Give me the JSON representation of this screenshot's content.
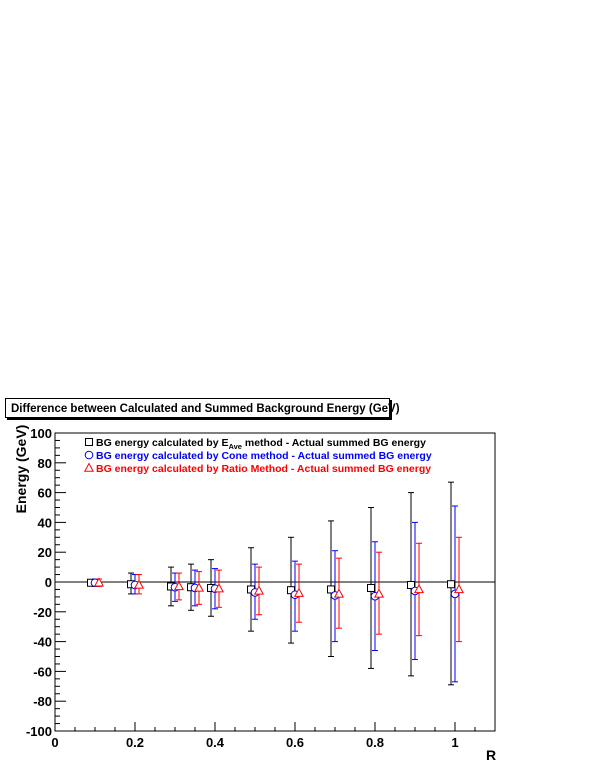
{
  "chart_data": {
    "type": "scatter",
    "title": "Difference between Calculated and Summed Background Energy (GeV)",
    "xlabel": "R",
    "ylabel": "Energy (GeV)",
    "xlim": [
      0,
      1.1
    ],
    "ylim": [
      -100,
      100
    ],
    "x_ticks": [
      "0",
      "0.2",
      "0.4",
      "0.6",
      "0.8",
      "1"
    ],
    "y_ticks": [
      "-100",
      "-80",
      "-60",
      "-40",
      "-20",
      "0",
      "20",
      "40",
      "60",
      "80",
      "100"
    ],
    "grid": false,
    "legend_position": "top-left",
    "legend": [
      {
        "marker": "square",
        "color": "#000000",
        "text_pre": "BG energy calculated by E",
        "text_sub": "Ave",
        "text_post": " method - Actual summed BG energy"
      },
      {
        "marker": "circle",
        "color": "#0000ff",
        "text_pre": "BG energy calculated by Cone method - Actual summed BG energy",
        "text_sub": "",
        "text_post": ""
      },
      {
        "marker": "triangle",
        "color": "#ff0000",
        "text_pre": "BG energy calculated by Ratio Method - Actual summed BG energy",
        "text_sub": "",
        "text_post": ""
      }
    ],
    "series": [
      {
        "marker": "square",
        "color": "#000000",
        "points": [
          {
            "x": 0.09,
            "y": -0.5,
            "lo": -2,
            "hi": 1.5
          },
          {
            "x": 0.19,
            "y": -1.5,
            "lo": -8,
            "hi": 6
          },
          {
            "x": 0.29,
            "y": -3,
            "lo": -16,
            "hi": 10
          },
          {
            "x": 0.34,
            "y": -3.5,
            "lo": -19,
            "hi": 12
          },
          {
            "x": 0.39,
            "y": -4,
            "lo": -23,
            "hi": 15
          },
          {
            "x": 0.49,
            "y": -5,
            "lo": -33,
            "hi": 23
          },
          {
            "x": 0.59,
            "y": -5.5,
            "lo": -41,
            "hi": 30
          },
          {
            "x": 0.69,
            "y": -5,
            "lo": -50,
            "hi": 41
          },
          {
            "x": 0.79,
            "y": -4,
            "lo": -58,
            "hi": 50
          },
          {
            "x": 0.89,
            "y": -2,
            "lo": -63,
            "hi": 60
          },
          {
            "x": 0.99,
            "y": -1.5,
            "lo": -69,
            "hi": 67
          }
        ]
      },
      {
        "marker": "circle",
        "color": "#0000ff",
        "points": [
          {
            "x": 0.1,
            "y": -0.5,
            "lo": -3,
            "hi": 2
          },
          {
            "x": 0.2,
            "y": -2,
            "lo": -8,
            "hi": 5
          },
          {
            "x": 0.3,
            "y": -3.5,
            "lo": -13,
            "hi": 6
          },
          {
            "x": 0.35,
            "y": -4,
            "lo": -16,
            "hi": 8
          },
          {
            "x": 0.4,
            "y": -4.5,
            "lo": -18,
            "hi": 9
          },
          {
            "x": 0.5,
            "y": -7,
            "lo": -25,
            "hi": 12
          },
          {
            "x": 0.6,
            "y": -8.5,
            "lo": -33,
            "hi": 14
          },
          {
            "x": 0.7,
            "y": -9,
            "lo": -40,
            "hi": 21
          },
          {
            "x": 0.8,
            "y": -9.5,
            "lo": -46,
            "hi": 27
          },
          {
            "x": 0.9,
            "y": -6,
            "lo": -52,
            "hi": 40
          },
          {
            "x": 1.0,
            "y": -8,
            "lo": -67,
            "hi": 51
          }
        ]
      },
      {
        "marker": "triangle",
        "color": "#ff0000",
        "points": [
          {
            "x": 0.11,
            "y": -0.5,
            "lo": -3,
            "hi": 2
          },
          {
            "x": 0.21,
            "y": -2,
            "lo": -8,
            "hi": 5
          },
          {
            "x": 0.31,
            "y": -3,
            "lo": -12,
            "hi": 6
          },
          {
            "x": 0.36,
            "y": -4,
            "lo": -15,
            "hi": 7
          },
          {
            "x": 0.41,
            "y": -4.5,
            "lo": -17,
            "hi": 8
          },
          {
            "x": 0.51,
            "y": -6,
            "lo": -22,
            "hi": 10
          },
          {
            "x": 0.61,
            "y": -7.5,
            "lo": -27,
            "hi": 12
          },
          {
            "x": 0.71,
            "y": -8,
            "lo": -31,
            "hi": 16
          },
          {
            "x": 0.81,
            "y": -8,
            "lo": -35,
            "hi": 20
          },
          {
            "x": 0.91,
            "y": -5,
            "lo": -36,
            "hi": 26
          },
          {
            "x": 1.01,
            "y": -5,
            "lo": -40,
            "hi": 30
          }
        ]
      }
    ]
  }
}
